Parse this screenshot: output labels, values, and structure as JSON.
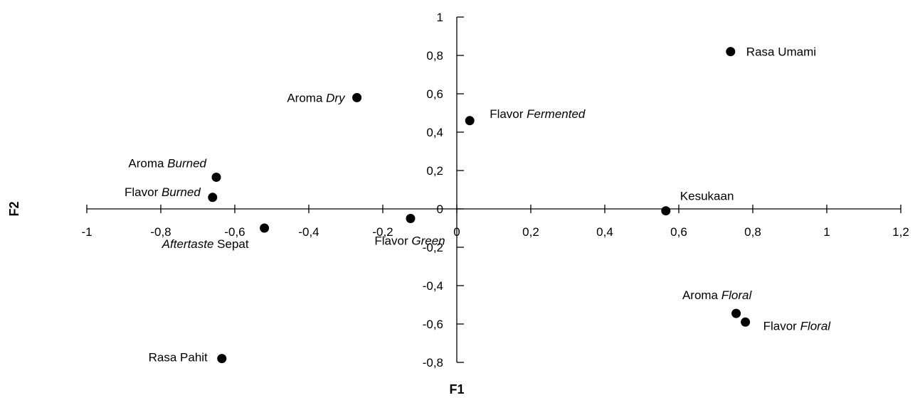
{
  "chart_data": {
    "type": "scatter",
    "title": "",
    "xlabel": "F1",
    "ylabel": "F2",
    "xlim": [
      -1,
      1.2
    ],
    "ylim": [
      -0.8,
      1
    ],
    "x_ticks": [
      -1,
      -0.8,
      -0.6,
      -0.4,
      -0.2,
      0,
      0.2,
      0.4,
      0.6,
      0.8,
      1,
      1.2
    ],
    "x_tick_labels": [
      "-1",
      "-0,8",
      "-0,6",
      "-0,4",
      "-0,2",
      "0",
      "0,2",
      "0,4",
      "0,6",
      "0,8",
      "1",
      "1,2"
    ],
    "y_ticks": [
      1,
      0.8,
      0.6,
      0.4,
      0.2,
      0,
      -0.2,
      -0.4,
      -0.6,
      -0.8
    ],
    "y_tick_labels": [
      "1",
      "0,8",
      "0,6",
      "0,4",
      "0,2",
      "0",
      "-0,2",
      "-0,4",
      "-0,6",
      "-0,8"
    ],
    "grid": false,
    "legend": "none",
    "marker_color": "#000000",
    "points": [
      {
        "label": "Rasa Umami",
        "label_parts": [
          {
            "text": "Rasa Umami",
            "italic": false
          }
        ],
        "x": 0.74,
        "y": 0.82
      },
      {
        "label": "Aroma Dry",
        "label_parts": [
          {
            "text": "Aroma ",
            "italic": false
          },
          {
            "text": "Dry",
            "italic": true
          }
        ],
        "x": -0.27,
        "y": 0.58
      },
      {
        "label": "Flavor Fermented",
        "label_parts": [
          {
            "text": "Flavor ",
            "italic": false
          },
          {
            "text": "Fermented",
            "italic": true
          }
        ],
        "x": 0.035,
        "y": 0.46
      },
      {
        "label": "Aroma Burned",
        "label_parts": [
          {
            "text": "Aroma ",
            "italic": false
          },
          {
            "text": "Burned",
            "italic": true
          }
        ],
        "x": -0.65,
        "y": 0.165
      },
      {
        "label": "Flavor Burned",
        "label_parts": [
          {
            "text": "Flavor ",
            "italic": false
          },
          {
            "text": "Burned",
            "italic": true
          }
        ],
        "x": -0.66,
        "y": 0.06
      },
      {
        "label": "Kesukaan",
        "label_parts": [
          {
            "text": "Kesukaan",
            "italic": false
          }
        ],
        "x": 0.565,
        "y": -0.01
      },
      {
        "label": "Aftertaste Sepat",
        "label_parts": [
          {
            "text": "Aftertaste",
            "italic": true
          },
          {
            "text": " Sepat",
            "italic": false
          }
        ],
        "x": -0.52,
        "y": -0.1
      },
      {
        "label": "Flavor Green",
        "label_parts": [
          {
            "text": "Flavor ",
            "italic": false
          },
          {
            "text": "Green",
            "italic": true
          }
        ],
        "x": -0.125,
        "y": -0.05
      },
      {
        "label": "Aroma Floral",
        "label_parts": [
          {
            "text": "Aroma ",
            "italic": false
          },
          {
            "text": "Floral",
            "italic": true
          }
        ],
        "x": 0.755,
        "y": -0.545
      },
      {
        "label": "Flavor Floral",
        "label_parts": [
          {
            "text": "Flavor ",
            "italic": false
          },
          {
            "text": "Floral",
            "italic": true
          }
        ],
        "x": 0.78,
        "y": -0.59
      },
      {
        "label": "Rasa Pahit",
        "label_parts": [
          {
            "text": "Rasa Pahit",
            "italic": false
          }
        ],
        "x": -0.635,
        "y": -0.78
      }
    ]
  }
}
